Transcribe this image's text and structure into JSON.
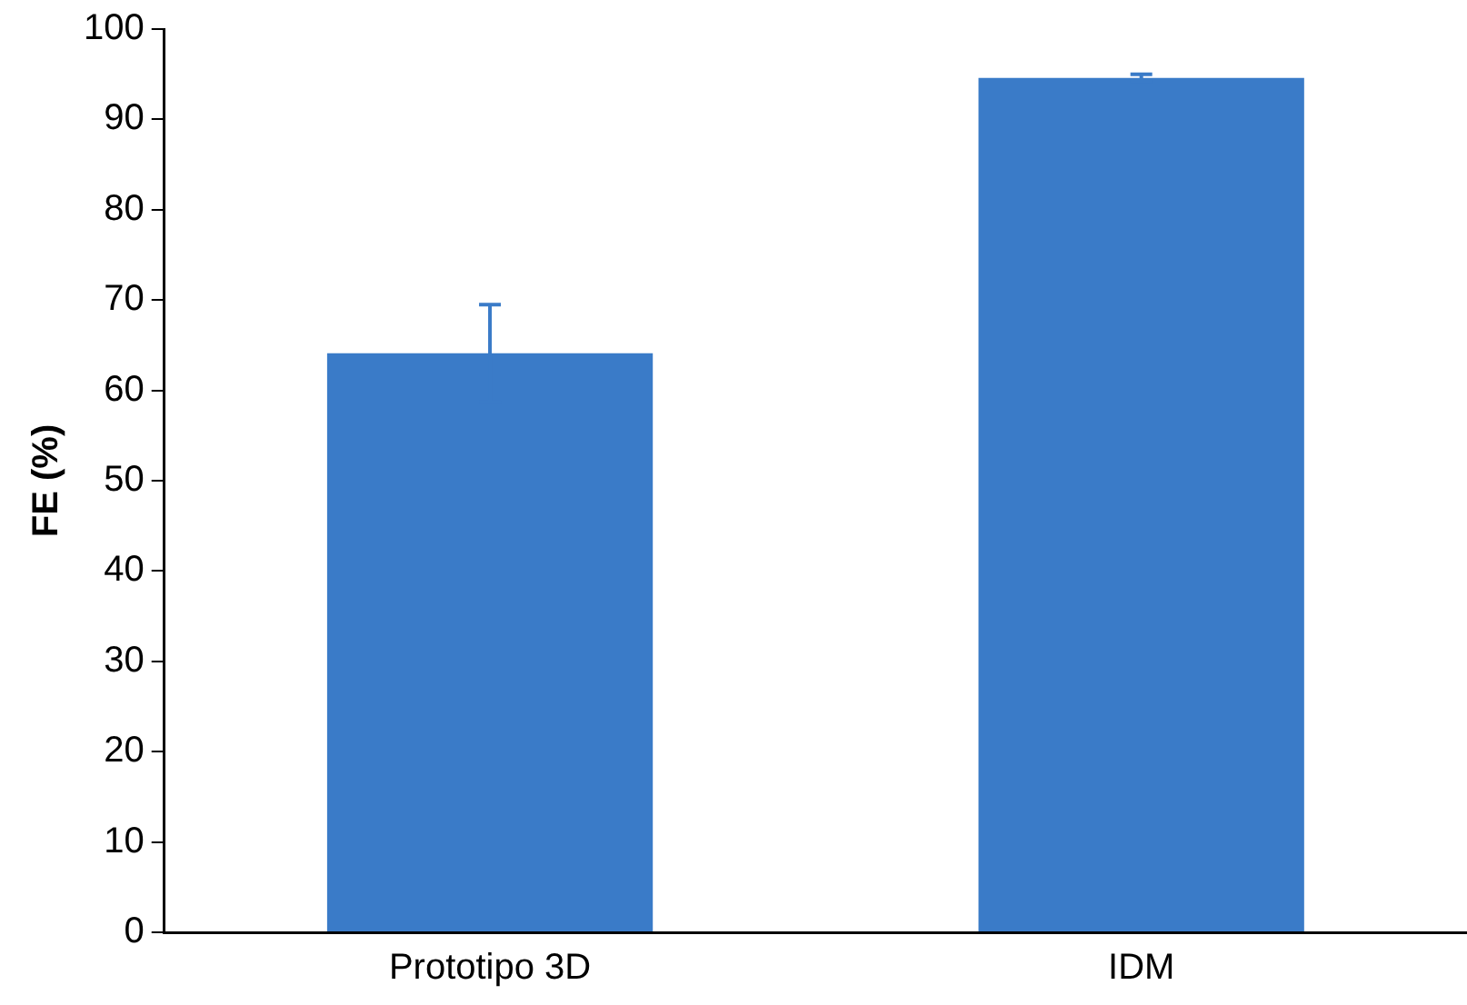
{
  "chart_data": {
    "type": "bar",
    "ylabel": "FE (%)",
    "categories": [
      "Prototipo 3D",
      "IDM"
    ],
    "values": [
      64.1,
      94.6
    ],
    "errors": [
      5.4,
      0.4
    ],
    "color": "#3a7bc8",
    "ylim": [
      0,
      100
    ],
    "yticks": [
      0,
      10,
      20,
      30,
      40,
      50,
      60,
      70,
      80,
      90,
      100
    ],
    "grid": false,
    "legend": false
  }
}
